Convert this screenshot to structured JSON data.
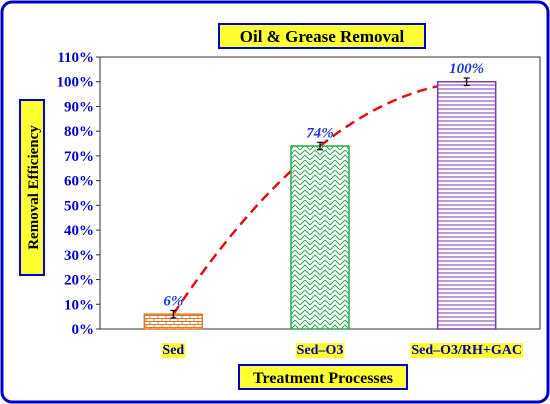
{
  "chart_data": {
    "type": "bar",
    "title": "Oil & Grease Removal",
    "xlabel": "Treatment Processes",
    "ylabel": "Removal Efficiency",
    "categories": [
      "Sed",
      "Sed–O3",
      "Sed–O3/RH+GAC"
    ],
    "values": [
      6,
      74,
      100
    ],
    "errors": [
      1.5,
      1.5,
      1.5
    ],
    "data_labels": [
      "6%",
      "74%",
      "100%"
    ],
    "ylim": [
      0,
      110
    ],
    "yticks": [
      "0%",
      "10%",
      "20%",
      "30%",
      "40%",
      "50%",
      "60%",
      "70%",
      "80%",
      "90%",
      "100%",
      "110%"
    ],
    "trendline": "dashed curve",
    "grid": false,
    "legend": "none"
  },
  "colors": {
    "frame": "#0000cc",
    "label_fill": "#ffff33",
    "tick_text": "#0000cc",
    "data_label": "#1a3ad6",
    "trend": "#e01010",
    "bars": [
      "#e07a2a",
      "#2aa84a",
      "#7a3aa8"
    ]
  }
}
